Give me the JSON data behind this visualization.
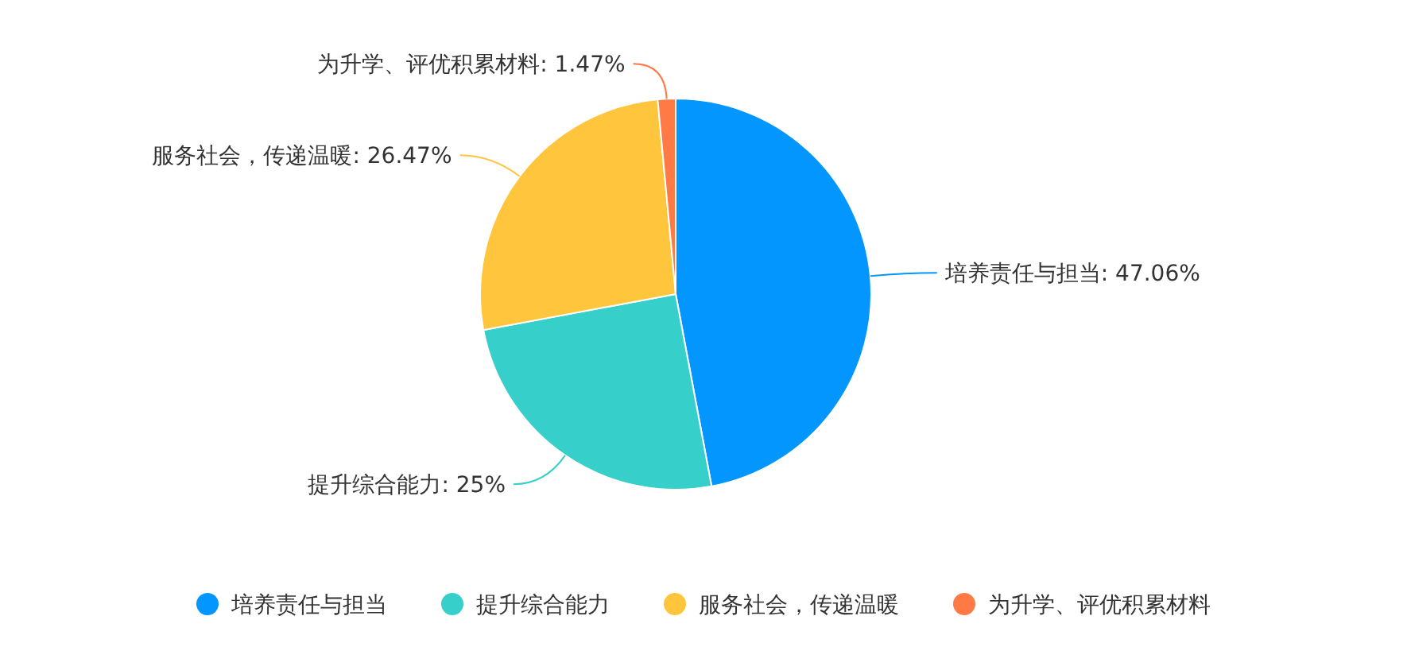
{
  "chart_data": {
    "type": "pie",
    "categories": [
      "培养责任与担当",
      "提升综合能力",
      "服务社会，传递温暖",
      "为升学、评优积累材料"
    ],
    "values": [
      47.06,
      25,
      26.47,
      1.47
    ],
    "colors": [
      "#0396ff",
      "#36cfc9",
      "#ffc53d",
      "#ff7a45"
    ],
    "value_labels": [
      ": 47.06%",
      ": 25%",
      ": 26.47%",
      ": 1.47%"
    ],
    "legend": "bottom"
  }
}
